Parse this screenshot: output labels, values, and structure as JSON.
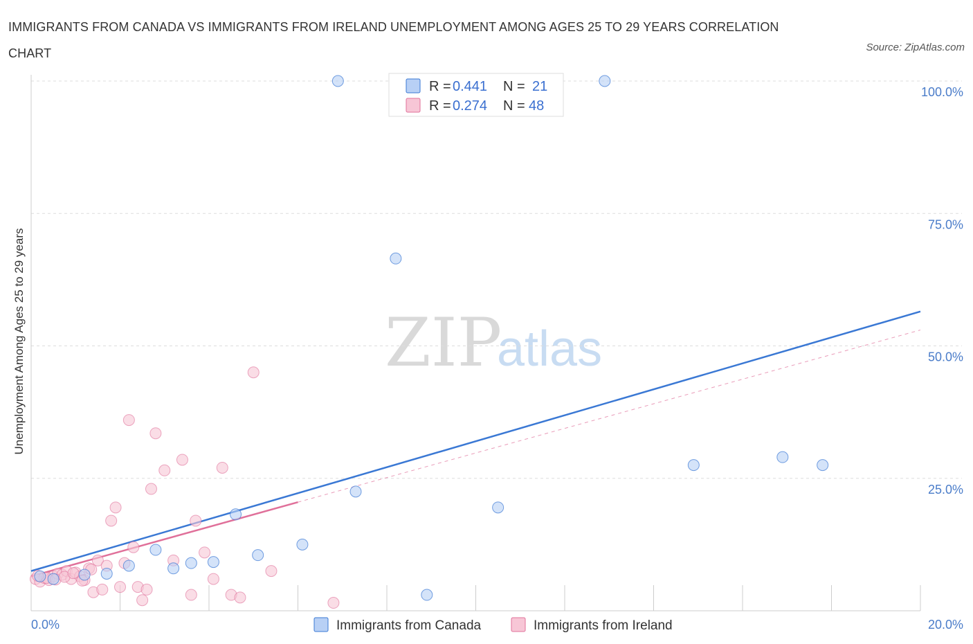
{
  "title": "IMMIGRANTS FROM CANADA VS IMMIGRANTS FROM IRELAND UNEMPLOYMENT AMONG AGES 25 TO 29 YEARS CORRELATION CHART",
  "source": "Source: ZipAtlas.com",
  "watermark": {
    "zip": "ZIP",
    "atlas": "atlas"
  },
  "colors": {
    "canada": "#3a78d4",
    "canada_fill": "#b8d0f5",
    "ireland": "#e0709a",
    "ireland_fill": "#f7c6d6",
    "grid": "#dddddd",
    "tick_text": "#4a7cc9"
  },
  "stats": {
    "canada": {
      "r_label": "R = ",
      "r": "0.441",
      "n_label": "N = ",
      "n": "21"
    },
    "ireland": {
      "r_label": "R = ",
      "r": "0.274",
      "n_label": "N = ",
      "n": "48"
    }
  },
  "chart_data": {
    "type": "scatter",
    "title": "IMMIGRANTS FROM CANADA VS IMMIGRANTS FROM IRELAND UNEMPLOYMENT AMONG AGES 25 TO 29 YEARS CORRELATION CHART",
    "xlabel": "",
    "ylabel": "Unemployment Among Ages 25 to 29 years",
    "xlim": [
      0,
      20
    ],
    "ylim": [
      0,
      100
    ],
    "x_tick_labels": [
      "0.0%",
      "20.0%"
    ],
    "y_ticks": [
      25,
      50,
      75,
      100
    ],
    "y_tick_labels": [
      "25.0%",
      "50.0%",
      "75.0%",
      "100.0%"
    ],
    "grid": true,
    "series": [
      {
        "name": "Immigrants from Canada",
        "points": [
          [
            0.2,
            6.5
          ],
          [
            1.2,
            6.8
          ],
          [
            1.7,
            7.0
          ],
          [
            2.2,
            8.5
          ],
          [
            2.8,
            11.5
          ],
          [
            3.2,
            8.0
          ],
          [
            3.6,
            9.0
          ],
          [
            4.1,
            9.2
          ],
          [
            4.6,
            18.2
          ],
          [
            5.1,
            10.5
          ],
          [
            6.1,
            12.5
          ],
          [
            6.9,
            100
          ],
          [
            7.3,
            22.5
          ],
          [
            8.2,
            66.5
          ],
          [
            8.9,
            3.0
          ],
          [
            10.5,
            19.5
          ],
          [
            12.9,
            100
          ],
          [
            14.9,
            27.5
          ],
          [
            16.9,
            29.0
          ],
          [
            17.8,
            27.5
          ],
          [
            0.5,
            6.0
          ]
        ],
        "trend": {
          "x": [
            0,
            20
          ],
          "y": [
            7.5,
            56.5
          ]
        }
      },
      {
        "name": "Immigrants from Ireland",
        "points": [
          [
            0.1,
            6.0
          ],
          [
            0.2,
            5.5
          ],
          [
            0.3,
            6.2
          ],
          [
            0.4,
            5.8
          ],
          [
            0.5,
            6.5
          ],
          [
            0.6,
            7.0
          ],
          [
            0.7,
            6.8
          ],
          [
            0.8,
            7.5
          ],
          [
            0.9,
            6.0
          ],
          [
            1.0,
            7.2
          ],
          [
            1.1,
            6.5
          ],
          [
            1.2,
            5.8
          ],
          [
            1.3,
            8.0
          ],
          [
            1.4,
            3.5
          ],
          [
            1.5,
            9.5
          ],
          [
            1.6,
            4.0
          ],
          [
            1.7,
            8.5
          ],
          [
            1.8,
            17.0
          ],
          [
            1.9,
            19.5
          ],
          [
            2.0,
            4.5
          ],
          [
            2.1,
            9.0
          ],
          [
            2.2,
            36.0
          ],
          [
            2.3,
            12.0
          ],
          [
            2.4,
            4.5
          ],
          [
            2.5,
            2.0
          ],
          [
            2.6,
            4.0
          ],
          [
            2.7,
            23.0
          ],
          [
            2.8,
            33.5
          ],
          [
            3.0,
            26.5
          ],
          [
            3.2,
            9.5
          ],
          [
            3.4,
            28.5
          ],
          [
            3.6,
            3.0
          ],
          [
            3.7,
            17.0
          ],
          [
            3.9,
            11.0
          ],
          [
            4.1,
            6.0
          ],
          [
            4.3,
            27.0
          ],
          [
            4.5,
            3.0
          ],
          [
            4.7,
            2.5
          ],
          [
            5.0,
            45.0
          ],
          [
            5.4,
            7.5
          ],
          [
            6.8,
            1.5
          ],
          [
            0.35,
            6.2
          ],
          [
            0.55,
            5.9
          ],
          [
            0.75,
            6.4
          ],
          [
            0.95,
            7.1
          ],
          [
            1.15,
            5.7
          ],
          [
            1.35,
            7.8
          ],
          [
            0.15,
            6.6
          ]
        ],
        "trend": {
          "x": [
            0,
            6
          ],
          "y": [
            6.5,
            20.5
          ]
        },
        "trend_extended": {
          "x": [
            6,
            20
          ],
          "y": [
            20.5,
            53
          ]
        }
      }
    ]
  },
  "legend": {
    "canada": "Immigrants from Canada",
    "ireland": "Immigrants from Ireland"
  }
}
